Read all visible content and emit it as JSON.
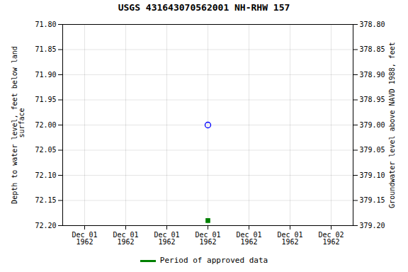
{
  "chart_data": {
    "type": "scatter",
    "title": "USGS 431643070562001 NH-RHW  157",
    "y_label": "Depth to water level, feet below land\n surface",
    "y2_label": "Groundwater level above NAVD 1988, feet",
    "categories": [
      "Dec 01\n1962",
      "Dec 01\n1962",
      "Dec 01\n1962",
      "Dec 01\n1962",
      "Dec 01\n1962",
      "Dec 01\n1962",
      "Dec 02\n1962"
    ],
    "series": [
      {
        "color": "blue",
        "marker": "circle_open",
        "values": [
          null,
          null,
          null,
          72.0,
          null,
          null,
          null
        ]
      },
      {
        "name": "Period of approved data",
        "color": "green",
        "marker": "square",
        "values": [
          null,
          null,
          null,
          72.19,
          null,
          null,
          null
        ]
      }
    ],
    "ylim": [
      72.2,
      71.8
    ],
    "yticks": [
      {
        "value": 71.8,
        "label": "71.80"
      },
      71.85,
      {
        "value": 71.9,
        "label": "71.90"
      },
      71.95,
      {
        "value": 72.0,
        "label": "72.00"
      },
      72.05,
      {
        "value": 72.1,
        "label": "72.10"
      },
      72.15,
      {
        "value": 72.2,
        "label": "72.20"
      }
    ],
    "y2lim": [
      379.2,
      378.8
    ],
    "y2ticks": [
      {
        "value": 379.2,
        "label": "379.20"
      },
      379.15,
      {
        "value": 379.1,
        "label": "379.10"
      },
      379.05,
      {
        "value": 379.0,
        "label": "379.00"
      },
      378.95,
      {
        "value": 378.9,
        "label": "378.90"
      },
      378.85,
      {
        "value": 378.8,
        "label": "378.80"
      }
    ],
    "grid": true,
    "legend": "bottom"
  }
}
